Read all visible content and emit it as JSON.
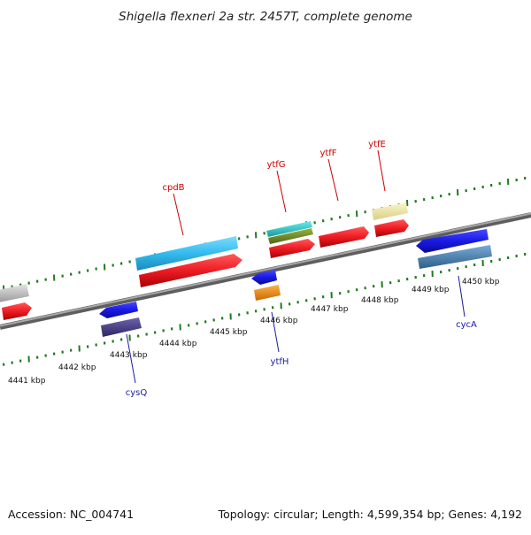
{
  "title": "Shigella flexneri 2a str. 2457T, complete genome",
  "accession": "Accession: NC_004741",
  "summary": "Topology: circular; Length: 4,599,354 bp; Genes: 4,192",
  "kbp_labels": [
    "4441 kbp",
    "4442 kbp",
    "4443 kbp",
    "4444 kbp",
    "4445 kbp",
    "4446 kbp",
    "4447 kbp",
    "4448 kbp",
    "4449 kbp",
    "4450 kbp"
  ],
  "genes_above": [
    {
      "name": "cpdB",
      "color": "#cc0000"
    },
    {
      "name": "ytfG",
      "color": "#cc0000"
    },
    {
      "name": "ytfF",
      "color": "#cc0000"
    },
    {
      "name": "ytfE",
      "color": "#cc0000"
    }
  ],
  "genes_below": [
    {
      "name": "cysQ",
      "color": "#1a1aa6"
    },
    {
      "name": "ytfH",
      "color": "#1a1aa6"
    },
    {
      "name": "cycA",
      "color": "#1a1aa6"
    }
  ],
  "colors": {
    "backbone": "#8a8a8a",
    "ticks": "#1f7a1f",
    "forward_cds": "#ee1c24",
    "reverse_cds": "#1a1ae6",
    "rna_cyan": "#33bbee",
    "teal": "#22cccc",
    "olive": "#6b8e23",
    "khaki": "#eee8aa",
    "steel": "#4682b4",
    "slate": "#483d8b",
    "orange": "#ff8c00",
    "grey": "#c0c0c0"
  }
}
